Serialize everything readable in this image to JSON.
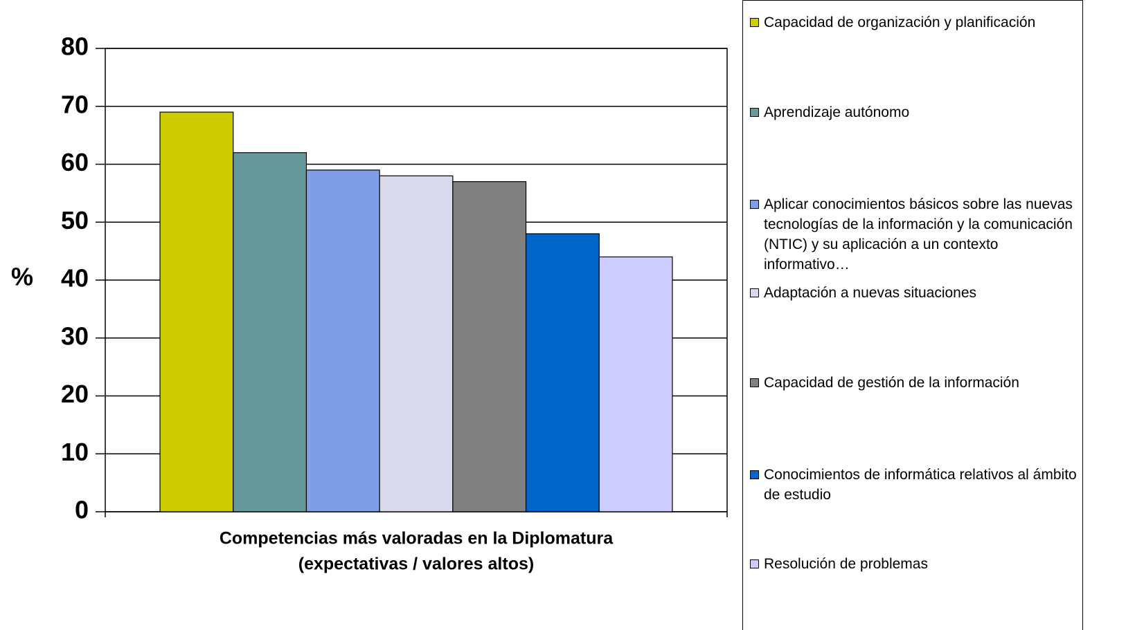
{
  "chart_data": {
    "type": "bar",
    "xlabel": [
      "Competencias más valoradas en la Diplomatura",
      "(expectativas / valores altos)"
    ],
    "ylabel": "%",
    "series": [
      {
        "name": "Capacidad de organización y planificación",
        "color": "#cccc00",
        "values": [
          69
        ]
      },
      {
        "name": "Aprendizaje autónomo",
        "color": "#669999",
        "values": [
          62
        ]
      },
      {
        "name": "Aplicar conocimientos básicos sobre las nuevas tecnologías de la información y la comunicación (NTIC) y su aplicación a un contexto informativo…",
        "color": "#809ee6",
        "values": [
          59
        ]
      },
      {
        "name": "Adaptación a nuevas situaciones",
        "color": "#d9d9ec",
        "values": [
          58
        ]
      },
      {
        "name": "Capacidad de gestión de la información",
        "color": "#808080",
        "values": [
          57
        ]
      },
      {
        "name": "Conocimientos de informática relativos al ámbito de estudio",
        "color": "#0066cc",
        "values": [
          48
        ]
      },
      {
        "name": "Resolución de problemas",
        "color": "#ccccff",
        "values": [
          44
        ]
      }
    ],
    "ylim": [
      0,
      80
    ],
    "yticks": [
      0,
      10,
      20,
      30,
      40,
      50,
      60,
      70,
      80
    ],
    "grid": true,
    "legend": "right"
  }
}
